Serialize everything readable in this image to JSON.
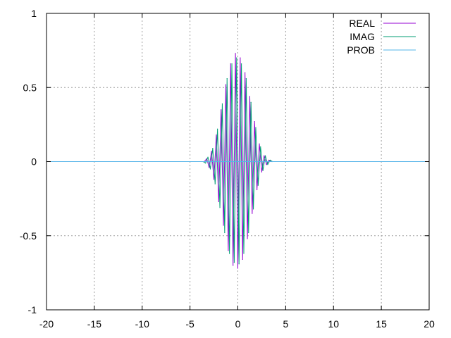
{
  "chart_data": {
    "type": "line",
    "title": "",
    "xlabel": "",
    "ylabel": "",
    "xlim": [
      -20,
      20
    ],
    "ylim": [
      -1,
      1
    ],
    "x_ticks": [
      -20,
      -15,
      -10,
      -5,
      0,
      5,
      10,
      15,
      20
    ],
    "x_tick_labels": [
      "-20",
      "-15",
      "-10",
      "-5",
      "0",
      "5",
      "10",
      "15",
      "20"
    ],
    "y_ticks": [
      -1,
      -0.5,
      0,
      0.5,
      1
    ],
    "y_tick_labels": [
      "-1",
      "-0.5",
      "0",
      "0.5",
      "1"
    ],
    "grid": true,
    "legend_position": "top-right",
    "series": [
      {
        "name": "REAL",
        "color": "#9400d3",
        "x": [
          -3.5,
          -3.25,
          -3.0,
          -2.75,
          -2.5,
          -2.25,
          -2.0,
          -1.75,
          -1.5,
          -1.25,
          -1.0,
          -0.75,
          -0.5,
          -0.25,
          0.0,
          0.25,
          0.5,
          0.75,
          1.0,
          1.25,
          1.5,
          1.75,
          2.0,
          2.25,
          2.5,
          2.75,
          3.0,
          3.25,
          3.5
        ],
        "y": [
          0.0,
          0.02,
          -0.04,
          0.07,
          -0.12,
          0.18,
          -0.27,
          0.35,
          -0.43,
          0.52,
          -0.6,
          0.66,
          -0.7,
          0.73,
          -0.72,
          0.7,
          -0.66,
          0.6,
          -0.52,
          0.44,
          -0.35,
          0.27,
          -0.19,
          0.12,
          -0.07,
          0.04,
          -0.02,
          0.01,
          0.0
        ]
      },
      {
        "name": "IMAG",
        "color": "#009e73",
        "x": [
          -3.625,
          -3.375,
          -3.125,
          -2.875,
          -2.625,
          -2.375,
          -2.125,
          -1.875,
          -1.625,
          -1.375,
          -1.125,
          -0.875,
          -0.625,
          -0.375,
          -0.125,
          0.125,
          0.375,
          0.625,
          0.875,
          1.125,
          1.375,
          1.625,
          1.875,
          2.125,
          2.375,
          2.625,
          2.875,
          3.125,
          3.375,
          3.625
        ],
        "y": [
          0.0,
          -0.01,
          0.03,
          -0.05,
          0.09,
          -0.15,
          0.22,
          -0.31,
          0.39,
          -0.48,
          0.56,
          -0.62,
          0.66,
          -0.68,
          0.7,
          -0.69,
          0.66,
          -0.62,
          0.56,
          -0.48,
          0.4,
          -0.32,
          0.23,
          -0.16,
          0.1,
          -0.06,
          0.04,
          -0.02,
          0.01,
          0.0
        ]
      },
      {
        "name": "PROB",
        "color": "#56b4e9",
        "x": [
          -20,
          20
        ],
        "y": [
          0,
          0
        ]
      }
    ]
  }
}
